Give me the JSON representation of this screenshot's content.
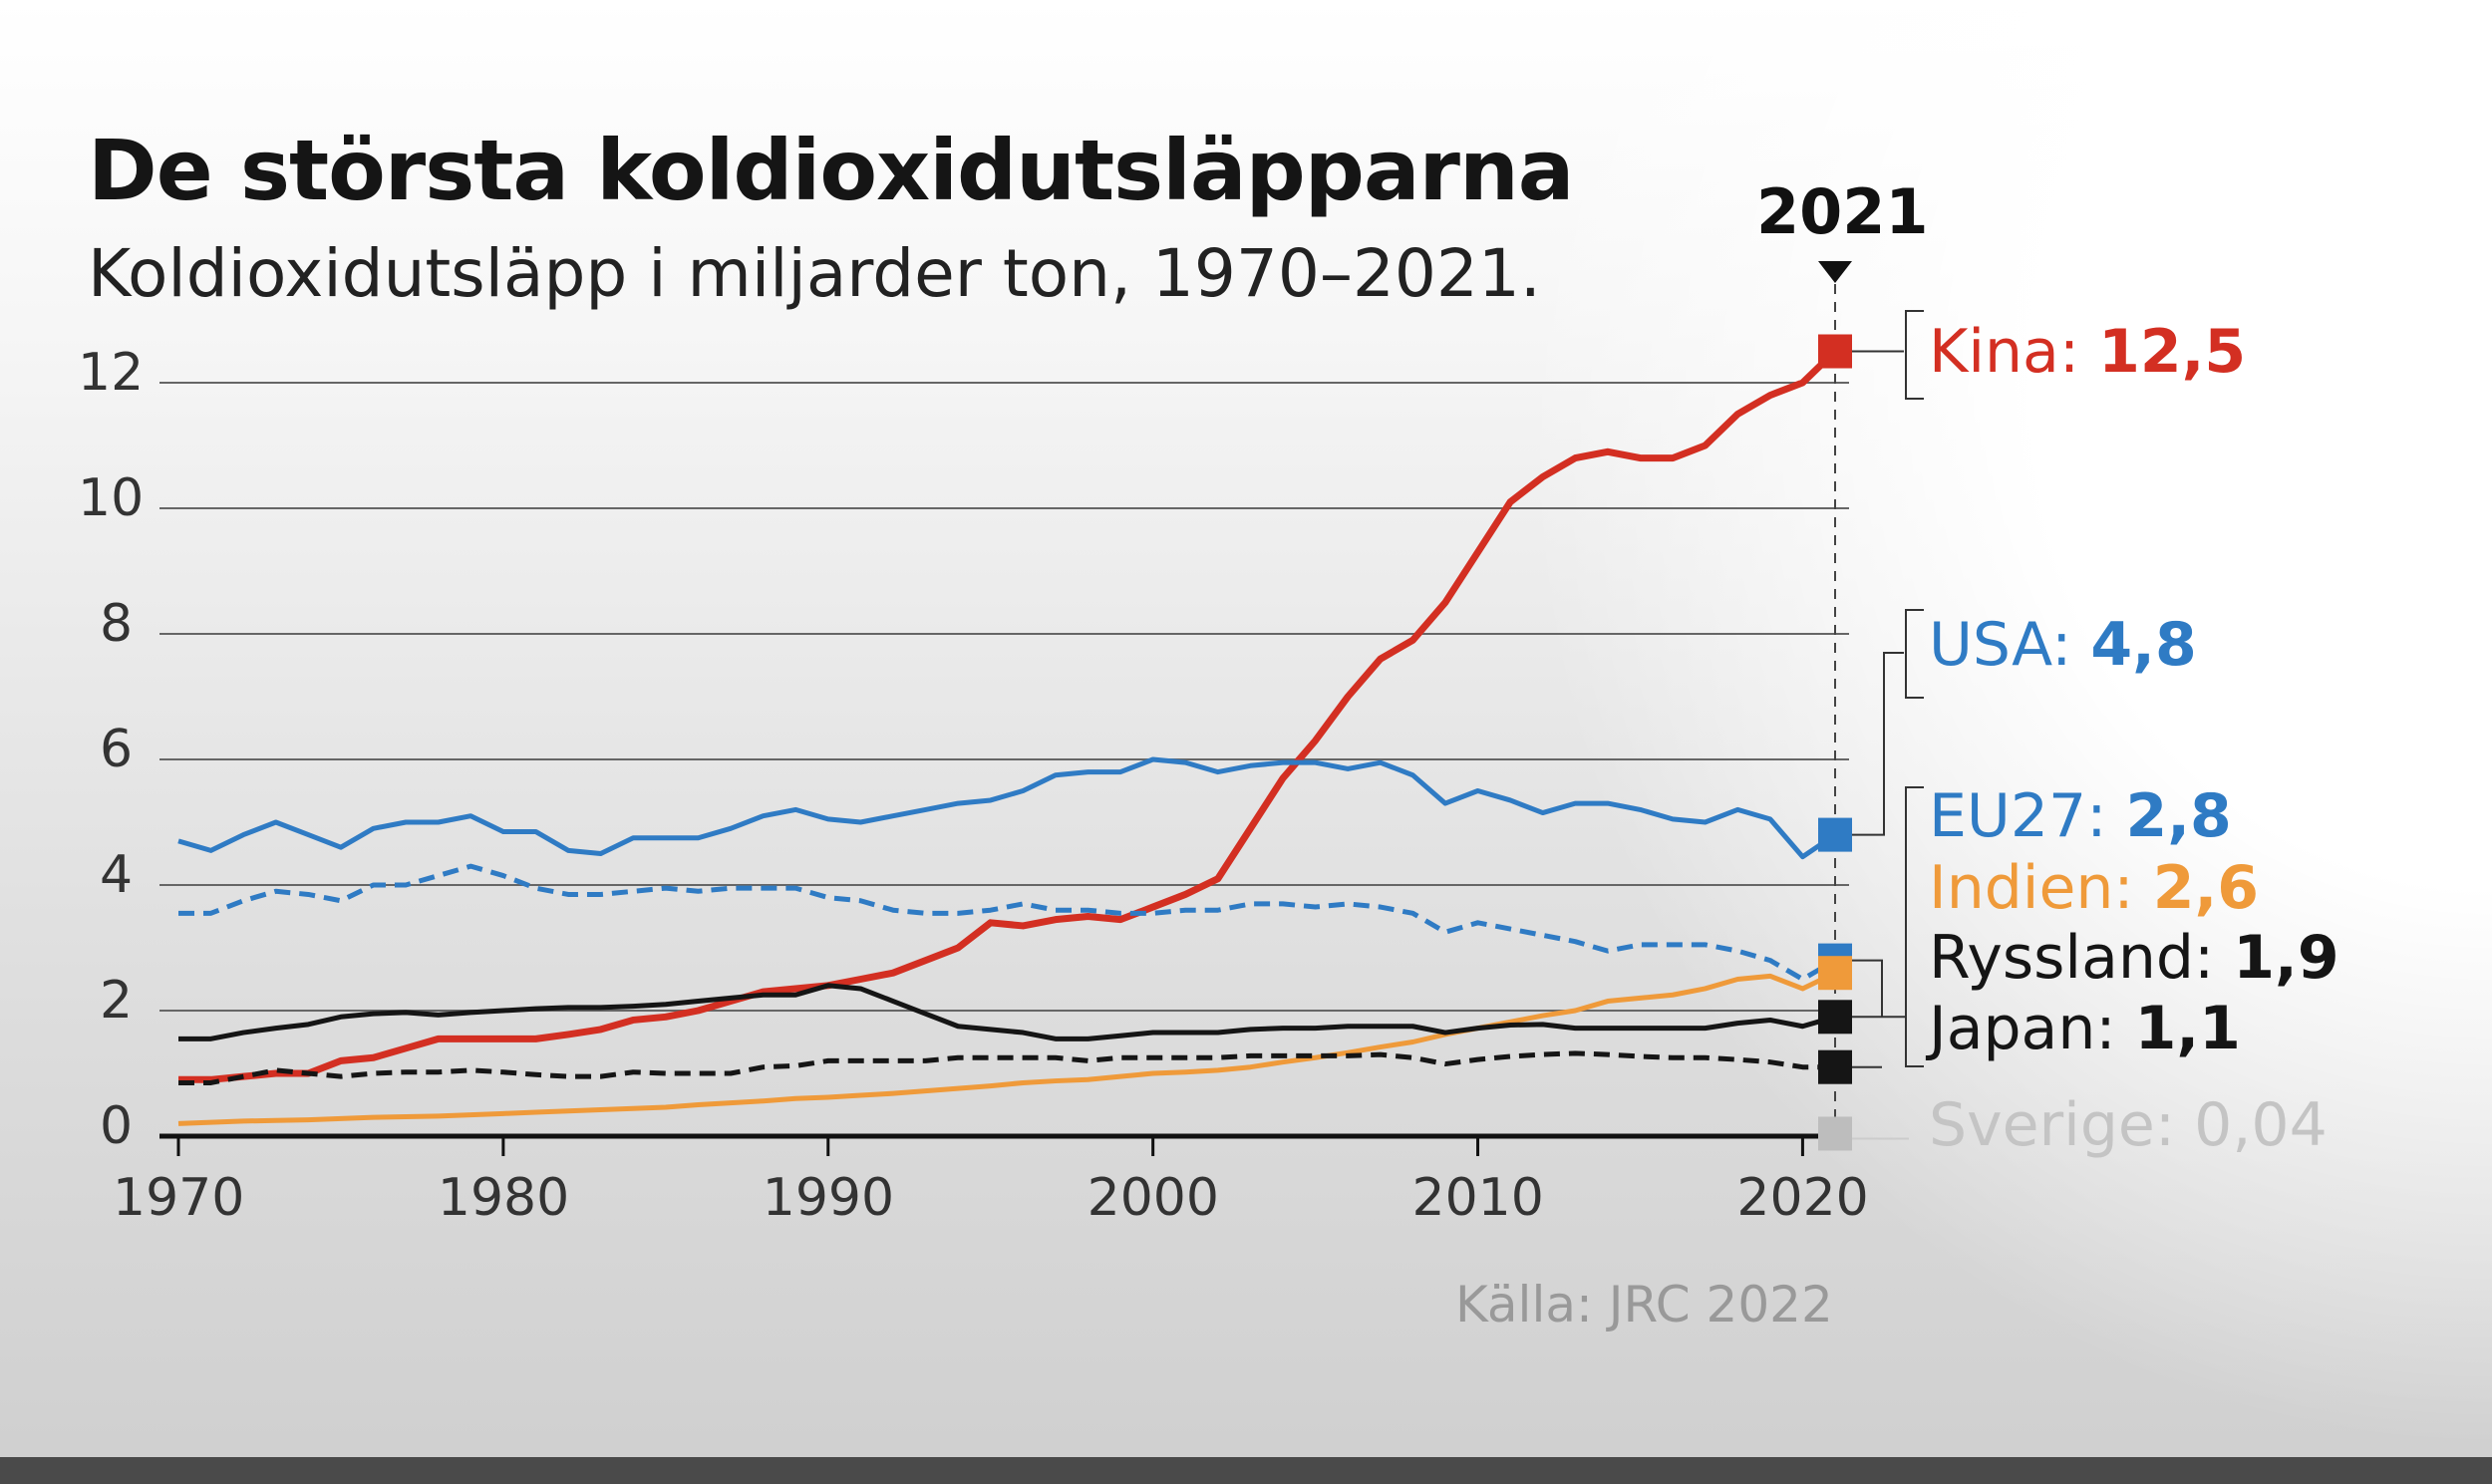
{
  "title": "De största koldioxidutsläpparna",
  "subtitle": "Koldioxidutsläpp i miljarder ton, 1970–2021.",
  "highlight_year": "2021",
  "source": "Källa: JRC 2022",
  "chart_data": {
    "type": "line",
    "title": "De största koldioxidutsläpparna",
    "subtitle": "Koldioxidutsläpp i miljarder ton, 1970–2021.",
    "xlim": [
      1970,
      2021
    ],
    "ylim": [
      0,
      12
    ],
    "x_ticks": [
      "1970",
      "1980",
      "1990",
      "2000",
      "2010",
      "2020"
    ],
    "y_ticks": [
      "0",
      "2",
      "4",
      "6",
      "8",
      "10",
      "12"
    ],
    "grid": "horizontal",
    "x_start": 1970,
    "series": [
      {
        "name": "Kina",
        "final_label": "12,5",
        "color": "#d32f22",
        "style": "solid",
        "values": [
          0.9,
          0.9,
          0.95,
          1.0,
          1.0,
          1.2,
          1.25,
          1.4,
          1.55,
          1.55,
          1.55,
          1.55,
          1.62,
          1.7,
          1.85,
          1.9,
          2.0,
          2.15,
          2.3,
          2.35,
          2.4,
          2.5,
          2.6,
          2.8,
          3.0,
          3.4,
          3.35,
          3.45,
          3.5,
          3.45,
          3.65,
          3.85,
          4.1,
          4.9,
          5.7,
          6.3,
          7.0,
          7.6,
          7.9,
          8.5,
          9.3,
          10.1,
          10.5,
          10.8,
          10.9,
          10.8,
          10.8,
          11.0,
          11.5,
          11.8,
          12.0,
          12.5
        ]
      },
      {
        "name": "USA",
        "final_label": "4,8",
        "color": "#2f7bc4",
        "style": "solid",
        "values": [
          4.7,
          4.55,
          4.8,
          5.0,
          4.8,
          4.6,
          4.9,
          5.0,
          5.0,
          5.1,
          4.85,
          4.85,
          4.55,
          4.5,
          4.75,
          4.75,
          4.75,
          4.9,
          5.1,
          5.2,
          5.05,
          5.0,
          5.1,
          5.2,
          5.3,
          5.35,
          5.5,
          5.75,
          5.8,
          5.8,
          6.0,
          5.95,
          5.8,
          5.9,
          5.95,
          5.95,
          5.85,
          5.95,
          5.75,
          5.3,
          5.5,
          5.35,
          5.15,
          5.3,
          5.3,
          5.2,
          5.05,
          5.0,
          5.2,
          5.05,
          4.45,
          4.8
        ]
      },
      {
        "name": "EU27",
        "final_label": "2,8",
        "color": "#2f7bc4",
        "style": "dashed",
        "values": [
          3.55,
          3.55,
          3.75,
          3.9,
          3.85,
          3.75,
          4.0,
          4.0,
          4.15,
          4.3,
          4.15,
          3.95,
          3.85,
          3.85,
          3.9,
          3.95,
          3.9,
          3.95,
          3.95,
          3.95,
          3.8,
          3.75,
          3.6,
          3.55,
          3.55,
          3.6,
          3.7,
          3.6,
          3.6,
          3.55,
          3.55,
          3.6,
          3.6,
          3.7,
          3.7,
          3.65,
          3.7,
          3.65,
          3.55,
          3.25,
          3.4,
          3.3,
          3.2,
          3.1,
          2.95,
          3.05,
          3.05,
          3.05,
          2.95,
          2.8,
          2.5,
          2.8
        ]
      },
      {
        "name": "Indien",
        "final_label": "2,6",
        "color": "#ef9a3a",
        "style": "solid",
        "values": [
          0.2,
          0.22,
          0.24,
          0.25,
          0.26,
          0.28,
          0.3,
          0.31,
          0.32,
          0.34,
          0.36,
          0.38,
          0.4,
          0.42,
          0.44,
          0.46,
          0.5,
          0.53,
          0.56,
          0.6,
          0.62,
          0.65,
          0.68,
          0.72,
          0.76,
          0.8,
          0.85,
          0.88,
          0.9,
          0.95,
          1.0,
          1.02,
          1.05,
          1.1,
          1.18,
          1.25,
          1.33,
          1.42,
          1.5,
          1.62,
          1.72,
          1.82,
          1.92,
          2.0,
          2.15,
          2.2,
          2.25,
          2.35,
          2.5,
          2.55,
          2.35,
          2.6
        ]
      },
      {
        "name": "Ryssland",
        "final_label": "1,9",
        "color": "#151515",
        "style": "solid",
        "values": [
          1.55,
          1.55,
          1.65,
          1.72,
          1.78,
          1.9,
          1.95,
          1.97,
          1.93,
          1.97,
          2.0,
          2.03,
          2.05,
          2.05,
          2.07,
          2.1,
          2.15,
          2.2,
          2.25,
          2.25,
          2.4,
          2.35,
          2.15,
          1.95,
          1.75,
          1.7,
          1.65,
          1.55,
          1.55,
          1.6,
          1.65,
          1.65,
          1.65,
          1.7,
          1.72,
          1.72,
          1.75,
          1.75,
          1.75,
          1.65,
          1.72,
          1.77,
          1.78,
          1.72,
          1.72,
          1.72,
          1.72,
          1.72,
          1.8,
          1.85,
          1.75,
          1.9
        ]
      },
      {
        "name": "Japan",
        "final_label": "1,1",
        "color": "#151515",
        "style": "dashed",
        "values": [
          0.85,
          0.85,
          0.95,
          1.05,
          1.0,
          0.95,
          1.0,
          1.02,
          1.02,
          1.05,
          1.02,
          0.98,
          0.95,
          0.95,
          1.02,
          1.0,
          1.0,
          1.0,
          1.1,
          1.12,
          1.2,
          1.2,
          1.2,
          1.2,
          1.25,
          1.25,
          1.25,
          1.25,
          1.2,
          1.25,
          1.25,
          1.25,
          1.25,
          1.28,
          1.28,
          1.28,
          1.28,
          1.3,
          1.25,
          1.15,
          1.22,
          1.27,
          1.3,
          1.32,
          1.3,
          1.27,
          1.25,
          1.25,
          1.22,
          1.18,
          1.1,
          1.1
        ]
      },
      {
        "name": "Sverige",
        "final_label": "0,04",
        "color": "#bdbdbd",
        "style": "marker-only",
        "values": [
          0.04
        ]
      }
    ]
  }
}
